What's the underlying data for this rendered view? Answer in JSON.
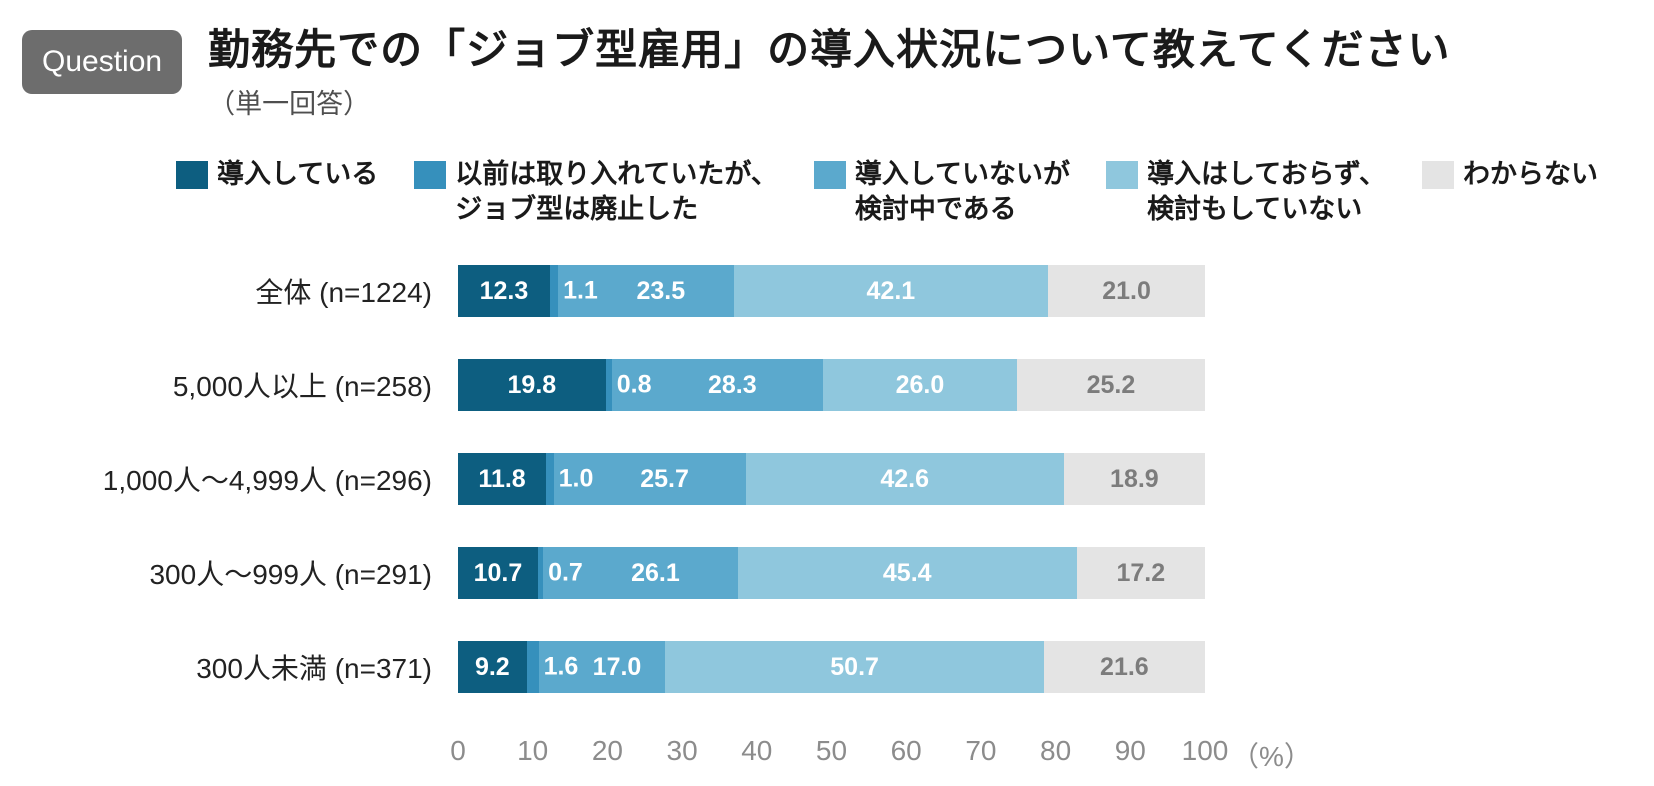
{
  "header": {
    "badge": "Question",
    "title": "勤務先での「ジョブ型雇用」の導入状況について教えてください",
    "subtitle": "（単一回答）"
  },
  "legend": [
    {
      "label": "導入している",
      "color": "#0d5e80"
    },
    {
      "label": "以前は取り入れていたが、\nジョブ型は廃止した",
      "color": "#3690bc"
    },
    {
      "label": "導入していないが\n検討中である",
      "color": "#5ba9cd"
    },
    {
      "label": "導入はしておらず、\n検討もしていない",
      "color": "#8fc7dd"
    },
    {
      "label": "わからない",
      "color": "#e4e4e4"
    }
  ],
  "chart_data": {
    "type": "bar",
    "subtype": "horizontal-stacked",
    "categories": [
      "全体 (n=1224)",
      "5,000人以上 (n=258)",
      "1,000人〜4,999人 (n=296)",
      "300人〜999人 (n=291)",
      "300人未満 (n=371)"
    ],
    "series": [
      {
        "name": "導入している",
        "color": "#0d5e80",
        "values": [
          12.3,
          19.8,
          11.8,
          10.7,
          9.2
        ]
      },
      {
        "name": "以前は取り入れていたが、ジョブ型は廃止した",
        "color": "#3690bc",
        "values": [
          1.1,
          0.8,
          1.0,
          0.7,
          1.6
        ]
      },
      {
        "name": "導入していないが検討中である",
        "color": "#5ba9cd",
        "values": [
          23.5,
          28.3,
          25.7,
          26.1,
          17.0
        ]
      },
      {
        "name": "導入はしておらず、検討もしていない",
        "color": "#8fc7dd",
        "values": [
          42.1,
          26.0,
          42.6,
          45.4,
          50.7
        ]
      },
      {
        "name": "わからない",
        "color": "#e4e4e4",
        "values": [
          21.0,
          25.2,
          18.9,
          17.2,
          21.6
        ]
      }
    ],
    "xlim": [
      0,
      100
    ],
    "x_ticks": [
      0,
      10,
      20,
      30,
      40,
      50,
      60,
      70,
      80,
      90,
      100
    ],
    "x_unit": "（%）",
    "grid": false,
    "legend_position": "top"
  }
}
